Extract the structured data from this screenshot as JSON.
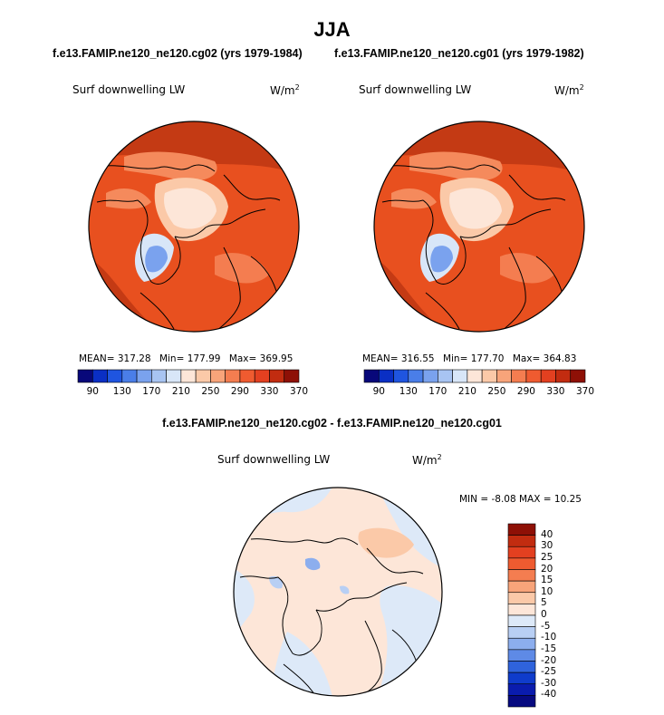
{
  "title": "JJA",
  "panels": [
    {
      "run": "f.e13.FAMIP.ne120_ne120.cg02 (yrs 1979-1984)",
      "variable": "Surf downwelling LW",
      "units": "W/m",
      "units_exp": "2",
      "mean_label": "MEAN= 317.28",
      "min_label": "Min= 177.99",
      "max_label": "Max= 369.95"
    },
    {
      "run": "f.e13.FAMIP.ne120_ne120.cg01 (yrs 1979-1982)",
      "variable": "Surf downwelling LW",
      "units": "W/m",
      "units_exp": "2",
      "mean_label": "MEAN= 316.55",
      "min_label": "Min= 177.70",
      "max_label": "Max= 364.83"
    }
  ],
  "difference": {
    "title": "f.e13.FAMIP.ne120_ne120.cg02 - f.e13.FAMIP.ne120_ne120.cg01",
    "variable": "Surf downwelling LW",
    "units": "W/m",
    "units_exp": "2",
    "minmax_label": "MIN =  -8.08 MAX =  10.25"
  },
  "chart_data": [
    {
      "type": "heatmap",
      "projection": "north polar stereographic",
      "title": "Surf downwelling LW",
      "units": "W/m^2",
      "stats": {
        "mean": 317.28,
        "min": 177.99,
        "max": 369.95
      },
      "colorbar": {
        "orientation": "horizontal",
        "tick_labels": [
          "90",
          "130",
          "170",
          "210",
          "250",
          "290",
          "330",
          "370"
        ],
        "colors": [
          "#08087a",
          "#0a2fc4",
          "#1f55e0",
          "#4a7ee8",
          "#7aa2ee",
          "#a8c4f2",
          "#d8e6f8",
          "#fde6d8",
          "#fbc9a8",
          "#f8a47a",
          "#f47d50",
          "#ef5b30",
          "#e34020",
          "#c22c10",
          "#8e1006"
        ]
      }
    },
    {
      "type": "heatmap",
      "projection": "north polar stereographic",
      "title": "Surf downwelling LW",
      "units": "W/m^2",
      "stats": {
        "mean": 316.55,
        "min": 177.7,
        "max": 364.83
      },
      "colorbar": {
        "orientation": "horizontal",
        "tick_labels": [
          "90",
          "130",
          "170",
          "210",
          "250",
          "290",
          "330",
          "370"
        ],
        "colors": [
          "#08087a",
          "#0a2fc4",
          "#1f55e0",
          "#4a7ee8",
          "#7aa2ee",
          "#a8c4f2",
          "#d8e6f8",
          "#fde6d8",
          "#fbc9a8",
          "#f8a47a",
          "#f47d50",
          "#ef5b30",
          "#e34020",
          "#c22c10",
          "#8e1006"
        ]
      }
    },
    {
      "type": "heatmap",
      "projection": "north polar stereographic",
      "title": "Surf downwelling LW",
      "units": "W/m^2",
      "stats": {
        "min": -8.08,
        "max": 10.25
      },
      "colorbar": {
        "orientation": "vertical",
        "tick_labels": [
          "40",
          "30",
          "25",
          "20",
          "15",
          "10",
          "5",
          "0",
          "-5",
          "-10",
          "-15",
          "-20",
          "-25",
          "-30",
          "-40"
        ],
        "colors": [
          "#8e1006",
          "#c22c10",
          "#e34020",
          "#ef5b30",
          "#f47d50",
          "#f8a47a",
          "#fbc9a8",
          "#fde6d8",
          "#dde9f8",
          "#b8cff4",
          "#8caeee",
          "#5e8ae6",
          "#2f63dc",
          "#0f3ccc",
          "#0a1cae",
          "#070a80"
        ]
      }
    }
  ]
}
